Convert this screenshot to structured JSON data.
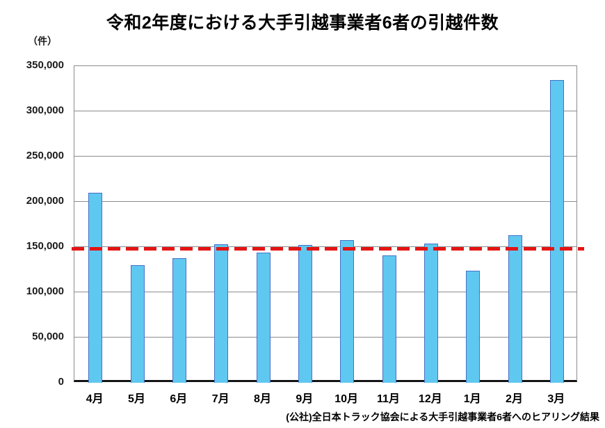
{
  "page": {
    "title": "令和2年度における大手引越事業者6者の引越件数",
    "unit_label": "（件）",
    "source_note": "(公社)全日本トラック協会による大手引越事業者6者へのヒアリング結果"
  },
  "chart_data": {
    "type": "bar",
    "title": "令和2年度における大手引越事業者6者の引越件数",
    "xlabel": "",
    "ylabel": "（件）",
    "categories": [
      "4月",
      "5月",
      "6月",
      "7月",
      "8月",
      "9月",
      "10月",
      "11月",
      "12月",
      "1月",
      "2月",
      "3月"
    ],
    "values": [
      210000,
      130000,
      138000,
      153000,
      144000,
      152000,
      158000,
      141000,
      154000,
      124000,
      163000,
      335000
    ],
    "ylim": [
      0,
      350000
    ],
    "ytick_step": 50000,
    "ytick_labels": [
      "0",
      "50,000",
      "100,000",
      "150,000",
      "200,000",
      "250,000",
      "300,000",
      "350,000"
    ],
    "grid": true,
    "legend": "none",
    "reference_line": {
      "value": 147000,
      "style": "dashed",
      "color": "#E51414"
    },
    "colors": {
      "bar_fill": "#5FC8F0",
      "bar_border": "#4472C8",
      "gridline": "#8C8C8C",
      "axis": "#141414",
      "reference": "#E51414"
    },
    "source_note": "(公社)全日本トラック協会による大手引越事業者6者へのヒアリング結果"
  }
}
